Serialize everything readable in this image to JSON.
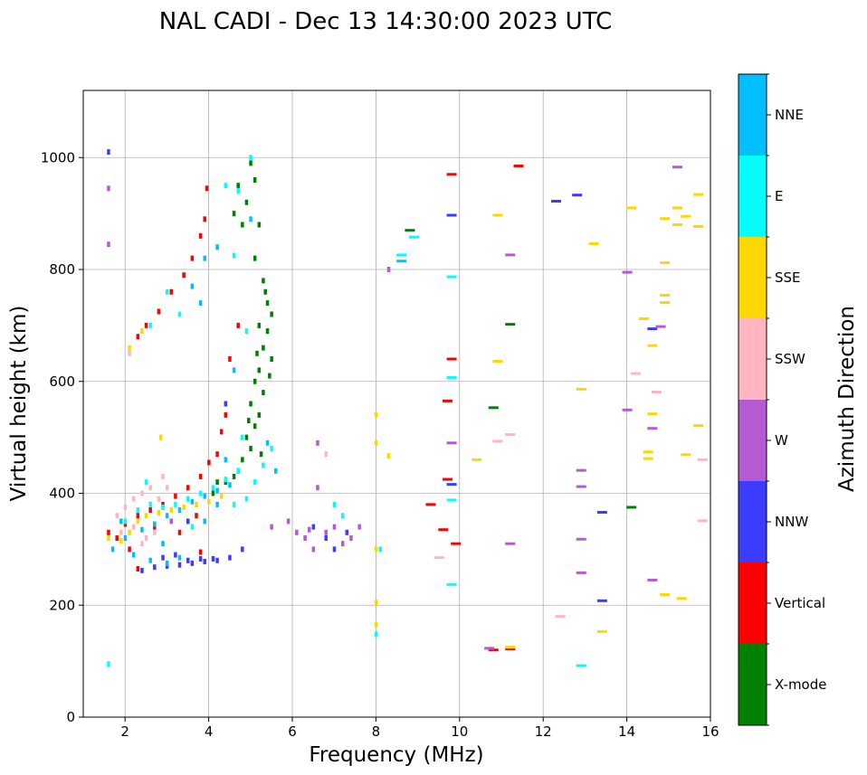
{
  "chart_data": {
    "type": "scatter",
    "title": "NAL CADI - Dec 13 14:30:00 2023 UTC",
    "xlabel": "Frequency (MHz)",
    "ylabel": "Virtual height (km)",
    "xlim": [
      1,
      16
    ],
    "ylim": [
      0,
      1120
    ],
    "xticks": [
      2,
      4,
      6,
      8,
      10,
      12,
      14,
      16
    ],
    "yticks": [
      0,
      200,
      400,
      600,
      800,
      1000
    ],
    "grid": true,
    "colorbar": {
      "label": "Azimuth Direction",
      "categories": [
        "X-mode",
        "Vertical",
        "NNW",
        "W",
        "SSW",
        "SSE",
        "E",
        "NNE"
      ],
      "colors": [
        "#008000",
        "#ff0000",
        "#3c3cff",
        "#b45ad2",
        "#ffb6c1",
        "#ffd700",
        "#00ffff",
        "#00bfff"
      ]
    },
    "series": [
      {
        "name": "X-mode",
        "points": [
          [
            4.6,
            900
          ],
          [
            4.7,
            950
          ],
          [
            4.8,
            880
          ],
          [
            4.9,
            920
          ],
          [
            5.0,
            990
          ],
          [
            5.1,
            960
          ],
          [
            5.2,
            880
          ],
          [
            5.1,
            820
          ],
          [
            5.3,
            780
          ],
          [
            5.4,
            740
          ],
          [
            5.5,
            720
          ],
          [
            5.4,
            690
          ],
          [
            5.3,
            660
          ],
          [
            5.5,
            640
          ],
          [
            5.2,
            620
          ],
          [
            5.1,
            600
          ],
          [
            5.3,
            580
          ],
          [
            5.0,
            560
          ],
          [
            5.2,
            540
          ],
          [
            5.1,
            520
          ],
          [
            4.9,
            500
          ],
          [
            5.0,
            480
          ],
          [
            4.8,
            460
          ],
          [
            4.7,
            440
          ],
          [
            4.6,
            430
          ],
          [
            4.4,
            420
          ],
          [
            5.2,
            700
          ],
          [
            5.35,
            760
          ],
          [
            5.45,
            610
          ],
          [
            5.15,
            650
          ],
          [
            4.95,
            530
          ],
          [
            5.25,
            470
          ],
          [
            8.8,
            870
          ],
          [
            11.2,
            702
          ],
          [
            10.8,
            553
          ],
          [
            14.1,
            375
          ],
          [
            4.2,
            420
          ],
          [
            4.1,
            400
          ]
        ]
      },
      {
        "name": "Vertical",
        "points": [
          [
            1.6,
            330
          ],
          [
            1.8,
            320
          ],
          [
            2.0,
            345
          ],
          [
            2.3,
            360
          ],
          [
            2.6,
            370
          ],
          [
            2.9,
            380
          ],
          [
            3.2,
            395
          ],
          [
            3.5,
            410
          ],
          [
            3.8,
            430
          ],
          [
            4.0,
            455
          ],
          [
            4.2,
            470
          ],
          [
            4.3,
            510
          ],
          [
            4.4,
            540
          ],
          [
            2.3,
            680
          ],
          [
            2.5,
            700
          ],
          [
            2.8,
            725
          ],
          [
            3.1,
            760
          ],
          [
            3.4,
            790
          ],
          [
            3.6,
            820
          ],
          [
            3.8,
            860
          ],
          [
            3.9,
            890
          ],
          [
            3.95,
            945
          ],
          [
            4.7,
            700
          ],
          [
            4.5,
            640
          ],
          [
            2.3,
            265
          ],
          [
            3.8,
            295
          ],
          [
            9.8,
            970
          ],
          [
            11.4,
            985
          ],
          [
            9.7,
            565
          ],
          [
            9.8,
            640
          ],
          [
            9.7,
            425
          ],
          [
            9.6,
            335
          ],
          [
            9.9,
            310
          ],
          [
            9.3,
            380
          ],
          [
            10.8,
            120
          ],
          [
            11.2,
            122
          ],
          [
            3.3,
            330
          ],
          [
            3.7,
            360
          ],
          [
            2.1,
            300
          ],
          [
            2.7,
            340
          ]
        ]
      },
      {
        "name": "NNW",
        "points": [
          [
            2.4,
            262
          ],
          [
            2.7,
            268
          ],
          [
            3.0,
            270
          ],
          [
            3.3,
            272
          ],
          [
            3.6,
            275
          ],
          [
            3.9,
            278
          ],
          [
            4.2,
            280
          ],
          [
            4.5,
            285
          ],
          [
            4.8,
            300
          ],
          [
            2.9,
            285
          ],
          [
            3.2,
            290
          ],
          [
            3.5,
            280
          ],
          [
            3.8,
            283
          ],
          [
            4.1,
            283
          ],
          [
            1.6,
            1010
          ],
          [
            9.8,
            897
          ],
          [
            9.8,
            416
          ],
          [
            12.3,
            922
          ],
          [
            14.6,
            694
          ],
          [
            13.4,
            208
          ],
          [
            13.4,
            366
          ],
          [
            6.8,
            320
          ],
          [
            6.5,
            340
          ],
          [
            7.0,
            300
          ],
          [
            7.3,
            330
          ],
          [
            3.5,
            350
          ],
          [
            4.4,
            560
          ],
          [
            12.8,
            933
          ]
        ]
      },
      {
        "name": "W",
        "points": [
          [
            1.6,
            945
          ],
          [
            1.6,
            845
          ],
          [
            5.5,
            340
          ],
          [
            5.9,
            350
          ],
          [
            6.1,
            330
          ],
          [
            6.3,
            320
          ],
          [
            6.5,
            300
          ],
          [
            6.8,
            330
          ],
          [
            7.0,
            340
          ],
          [
            7.2,
            310
          ],
          [
            7.6,
            340
          ],
          [
            6.6,
            410
          ],
          [
            6.6,
            490
          ],
          [
            8.3,
            800
          ],
          [
            11.2,
            826
          ],
          [
            14.0,
            795
          ],
          [
            14.0,
            549
          ],
          [
            14.8,
            698
          ],
          [
            15.2,
            983
          ],
          [
            12.9,
            441
          ],
          [
            12.9,
            412
          ],
          [
            12.9,
            318
          ],
          [
            12.9,
            258
          ],
          [
            14.6,
            516
          ],
          [
            14.6,
            245
          ],
          [
            10.7,
            123
          ],
          [
            11.2,
            310
          ],
          [
            6.4,
            335
          ],
          [
            7.4,
            320
          ],
          [
            3.1,
            350
          ],
          [
            9.8,
            490
          ]
        ]
      },
      {
        "name": "SSW",
        "points": [
          [
            1.8,
            360
          ],
          [
            2.0,
            375
          ],
          [
            2.2,
            390
          ],
          [
            2.4,
            400
          ],
          [
            2.6,
            410
          ],
          [
            2.8,
            390
          ],
          [
            3.0,
            410
          ],
          [
            2.2,
            340
          ],
          [
            2.5,
            320
          ],
          [
            2.7,
            330
          ],
          [
            3.3,
            370
          ],
          [
            2.1,
            650
          ],
          [
            14.2,
            614
          ],
          [
            14.7,
            581
          ],
          [
            15.8,
            460
          ],
          [
            15.8,
            351
          ],
          [
            12.4,
            180
          ],
          [
            9.5,
            285
          ],
          [
            11.2,
            505
          ],
          [
            10.9,
            493
          ],
          [
            6.8,
            470
          ],
          [
            2.9,
            430
          ],
          [
            1.9,
            330
          ],
          [
            2.4,
            310
          ]
        ]
      },
      {
        "name": "SSE",
        "points": [
          [
            1.6,
            320
          ],
          [
            1.9,
            315
          ],
          [
            2.1,
            330
          ],
          [
            2.3,
            350
          ],
          [
            2.5,
            360
          ],
          [
            2.8,
            365
          ],
          [
            3.1,
            370
          ],
          [
            3.4,
            375
          ],
          [
            3.7,
            380
          ],
          [
            4.0,
            385
          ],
          [
            4.3,
            395
          ],
          [
            2.85,
            500
          ],
          [
            2.4,
            690
          ],
          [
            2.1,
            660
          ],
          [
            8.0,
            540
          ],
          [
            8.0,
            490
          ],
          [
            8.0,
            300
          ],
          [
            8.0,
            205
          ],
          [
            8.0,
            165
          ],
          [
            8.3,
            467
          ],
          [
            10.4,
            460
          ],
          [
            10.9,
            897
          ],
          [
            10.9,
            636
          ],
          [
            12.9,
            586
          ],
          [
            13.2,
            846
          ],
          [
            13.4,
            153
          ],
          [
            14.1,
            910
          ],
          [
            14.4,
            712
          ],
          [
            14.6,
            664
          ],
          [
            14.6,
            542
          ],
          [
            14.5,
            474
          ],
          [
            14.5,
            462
          ],
          [
            14.9,
            812
          ],
          [
            14.9,
            754
          ],
          [
            14.9,
            741
          ],
          [
            15.2,
            910
          ],
          [
            15.4,
            895
          ],
          [
            15.2,
            880
          ],
          [
            15.7,
            934
          ],
          [
            15.7,
            877
          ],
          [
            15.7,
            521
          ],
          [
            15.4,
            469
          ],
          [
            14.9,
            219
          ],
          [
            15.3,
            212
          ],
          [
            14.9,
            891
          ],
          [
            11.2,
            125
          ]
        ]
      },
      {
        "name": "E",
        "points": [
          [
            1.6,
            95
          ],
          [
            2.0,
            350
          ],
          [
            2.3,
            370
          ],
          [
            2.6,
            380
          ],
          [
            2.9,
            375
          ],
          [
            3.2,
            380
          ],
          [
            3.5,
            390
          ],
          [
            3.8,
            400
          ],
          [
            4.1,
            410
          ],
          [
            4.4,
            425
          ],
          [
            4.7,
            440
          ],
          [
            4.9,
            390
          ],
          [
            5.1,
            420
          ],
          [
            5.3,
            450
          ],
          [
            5.5,
            480
          ],
          [
            4.8,
            500
          ],
          [
            4.6,
            380
          ],
          [
            3.0,
            760
          ],
          [
            3.3,
            720
          ],
          [
            2.6,
            700
          ],
          [
            8.0,
            148
          ],
          [
            8.1,
            300
          ],
          [
            8.6,
            826
          ],
          [
            8.9,
            858
          ],
          [
            9.8,
            787
          ],
          [
            9.8,
            607
          ],
          [
            9.8,
            388
          ],
          [
            9.8,
            237
          ],
          [
            12.9,
            92
          ],
          [
            7.0,
            380
          ],
          [
            7.2,
            360
          ],
          [
            4.6,
            825
          ],
          [
            4.7,
            940
          ],
          [
            4.9,
            690
          ],
          [
            5.0,
            1000
          ],
          [
            4.4,
            950
          ],
          [
            2.5,
            420
          ],
          [
            3.6,
            340
          ]
        ]
      },
      {
        "name": "NNE",
        "points": [
          [
            1.7,
            300
          ],
          [
            2.0,
            320
          ],
          [
            2.4,
            335
          ],
          [
            2.7,
            345
          ],
          [
            3.0,
            360
          ],
          [
            3.3,
            370
          ],
          [
            3.6,
            385
          ],
          [
            3.9,
            395
          ],
          [
            4.2,
            405
          ],
          [
            4.5,
            415
          ],
          [
            2.6,
            280
          ],
          [
            3.0,
            275
          ],
          [
            3.3,
            285
          ],
          [
            2.9,
            310
          ],
          [
            8.6,
            815
          ],
          [
            5.6,
            440
          ],
          [
            5.4,
            490
          ],
          [
            4.6,
            620
          ],
          [
            4.4,
            460
          ],
          [
            4.2,
            380
          ],
          [
            3.9,
            350
          ],
          [
            3.8,
            740
          ],
          [
            3.6,
            770
          ],
          [
            3.9,
            820
          ],
          [
            4.2,
            840
          ],
          [
            5.0,
            890
          ],
          [
            1.9,
            350
          ],
          [
            2.2,
            290
          ]
        ]
      }
    ]
  }
}
